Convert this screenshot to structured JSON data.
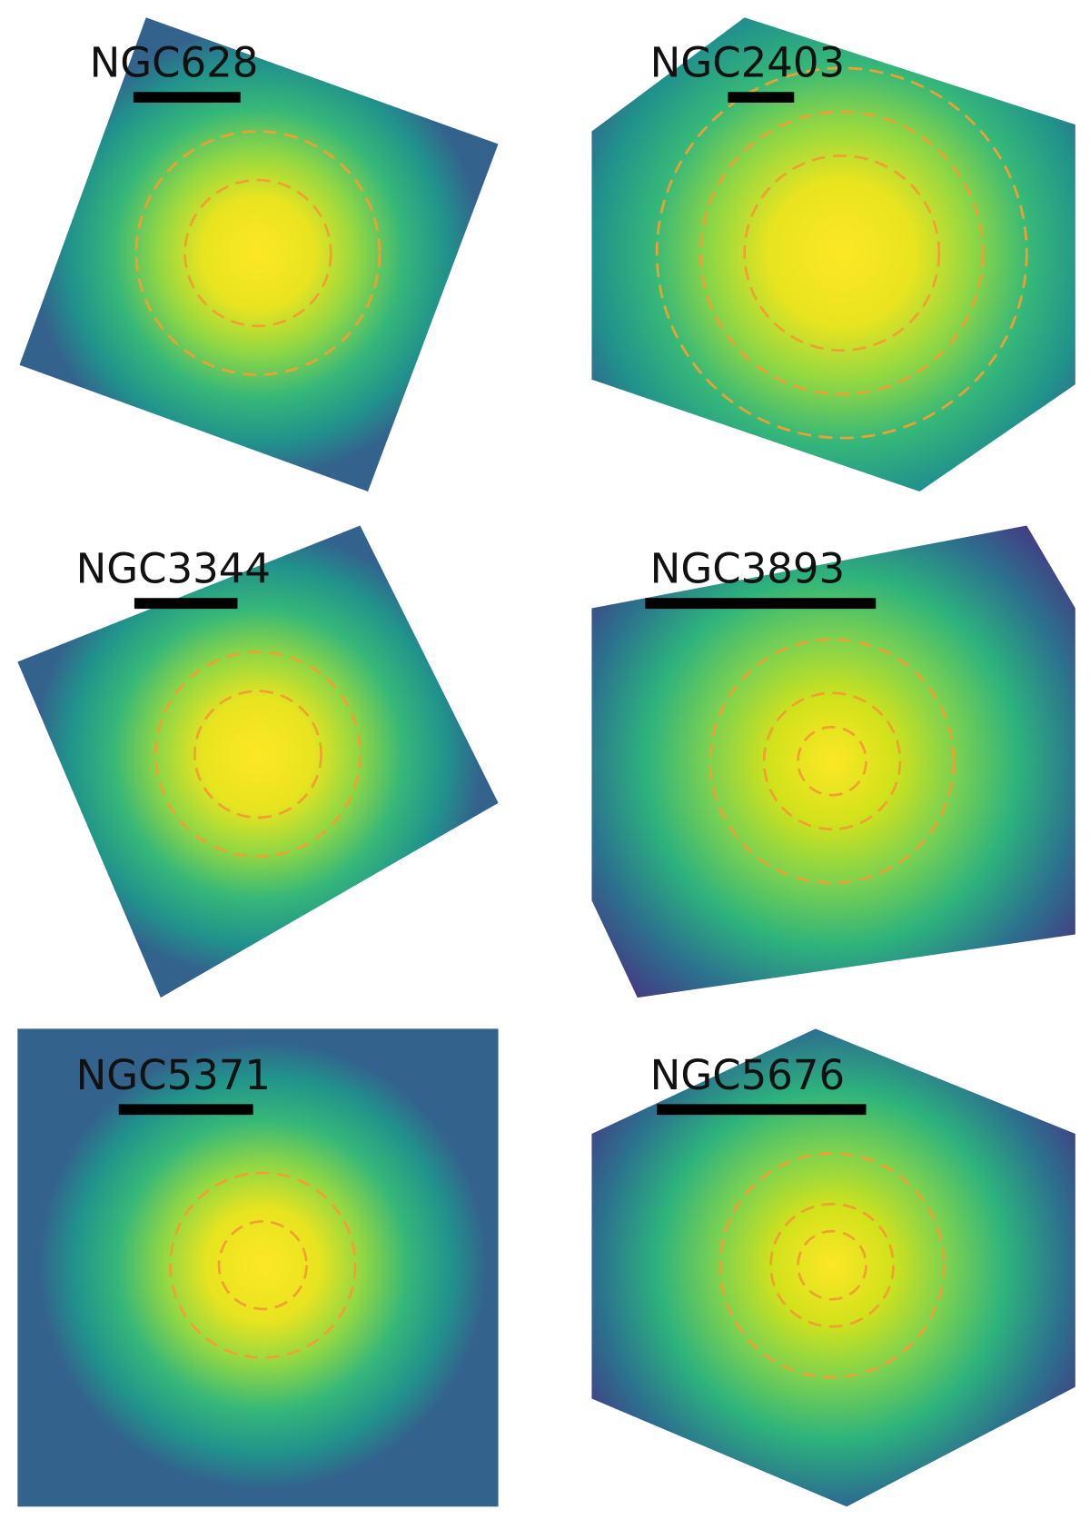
{
  "panels": [
    {
      "label": "NGC628"
    },
    {
      "label": "NGC2403"
    },
    {
      "label": "NGC3344"
    },
    {
      "label": "NGC3893"
    },
    {
      "label": "NGC5371"
    },
    {
      "label": "NGC5676"
    }
  ]
}
